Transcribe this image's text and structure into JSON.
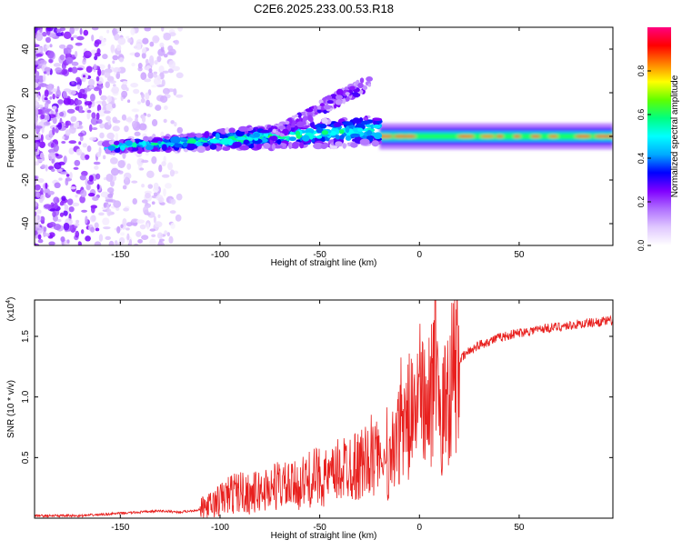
{
  "figure_title": "C2E6.2025.233.00.53.R18",
  "chart_data": [
    {
      "type": "heatmap",
      "title": "C2E6.2025.233.00.53.R18",
      "xlabel": "Height of straight line (km)",
      "ylabel": "Frequency (Hz)",
      "xlim": [
        -193,
        97
      ],
      "ylim": [
        -50,
        50
      ],
      "x_ticks": [
        -150,
        -100,
        -50,
        0,
        50
      ],
      "x_tick_labels": [
        "-150",
        "-100",
        "-50",
        "0",
        "50"
      ],
      "y_ticks": [
        -40,
        -20,
        0,
        20,
        40
      ],
      "y_tick_labels": [
        "-40",
        "-20",
        "0",
        "20",
        "40"
      ],
      "colorbar": {
        "label": "Normalized spectral amplitude",
        "range": [
          0,
          1
        ],
        "ticks": [
          0,
          0.2,
          0.4,
          0.6,
          0.8
        ],
        "tick_labels": [
          "0.0",
          "0.2",
          "0.4",
          "0.6",
          "0.8"
        ],
        "colormap": [
          "#ffffff",
          "#e0c8ff",
          "#b070ff",
          "#8000ff",
          "#0000ff",
          "#00aaff",
          "#00ffff",
          "#00ff80",
          "#60ff00",
          "#ffff00",
          "#ff8000",
          "#ff0000",
          "#ff0080"
        ]
      },
      "features": [
        {
          "name": "noise region",
          "x_range": [
            -193,
            -120
          ],
          "y_range": [
            -50,
            50
          ],
          "amplitude": 0.1
        },
        {
          "name": "main band",
          "x_range": [
            -157,
            -20
          ],
          "center_freq": [
            -5,
            3
          ],
          "amplitude": 0.4
        },
        {
          "name": "upper rising branch",
          "x_range": [
            -75,
            -25
          ],
          "center_freq": [
            0,
            25
          ],
          "amplitude": 0.2
        },
        {
          "name": "steady band",
          "x_range": [
            -20,
            97
          ],
          "center_freq": 0,
          "amplitude": 0.55
        }
      ]
    },
    {
      "type": "line",
      "xlabel": "Height of straight line (km)",
      "ylabel": "SNR (10 * v/v)",
      "y_scale_label": "(x10",
      "y_scale_exp": "4",
      "xlim": [
        -193,
        97
      ],
      "ylim": [
        0,
        1.8
      ],
      "x_ticks": [
        -150,
        -100,
        -50,
        0,
        50
      ],
      "x_tick_labels": [
        "-150",
        "-100",
        "-50",
        "0",
        "50"
      ],
      "y_ticks": [
        0.5,
        1.0,
        1.5
      ],
      "y_tick_labels": [
        "0.5",
        "1.0",
        "1.5"
      ],
      "line_color": "#e8201e",
      "series": [
        {
          "name": "SNR",
          "x": [
            -193,
            -180,
            -170,
            -160,
            -150,
            -140,
            -130,
            -120,
            -110,
            -105,
            -100,
            -95,
            -90,
            -85,
            -80,
            -75,
            -70,
            -65,
            -60,
            -55,
            -50,
            -45,
            -40,
            -35,
            -30,
            -25,
            -22,
            -20,
            -18,
            -15,
            -12,
            -10,
            -8,
            -5,
            -2,
            0,
            2,
            4,
            6,
            8,
            10,
            12,
            14,
            16,
            18,
            20,
            25,
            30,
            40,
            50,
            60,
            70,
            80,
            90,
            97
          ],
          "y": [
            0.02,
            0.02,
            0.02,
            0.03,
            0.04,
            0.05,
            0.06,
            0.05,
            0.07,
            0.1,
            0.15,
            0.2,
            0.22,
            0.2,
            0.22,
            0.25,
            0.28,
            0.25,
            0.28,
            0.32,
            0.35,
            0.32,
            0.4,
            0.45,
            0.42,
            0.5,
            0.55,
            0.45,
            0.3,
            0.5,
            0.55,
            0.75,
            0.7,
            0.85,
            0.9,
            1.0,
            1.05,
            1.0,
            1.0,
            1.1,
            0.8,
            0.85,
            1.05,
            1.15,
            1.25,
            1.3,
            1.38,
            1.43,
            1.49,
            1.53,
            1.56,
            1.58,
            1.6,
            1.62,
            1.63
          ]
        }
      ]
    }
  ]
}
